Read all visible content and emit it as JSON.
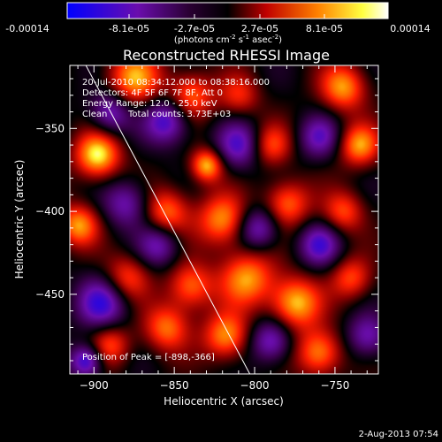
{
  "colorbar": {
    "ticks": [
      "-0.00014",
      "-8.1e-05",
      "-2.7e-05",
      "2.7e-05",
      "8.1e-05",
      "0.00014"
    ],
    "unit_prefix": "(photons cm",
    "unit_sup1": "-2",
    "unit_mid": " s",
    "unit_sup2": "-1",
    "unit_mid2": " asec",
    "unit_sup3": "-2",
    "unit_suffix": ")"
  },
  "chart_data": {
    "type": "heatmap",
    "title": "Reconstructed RHESSI Image",
    "xlabel": "Heliocentric X (arcsec)",
    "ylabel": "Heliocentric Y (arcsec)",
    "xlim": [
      -915,
      -723
    ],
    "ylim": [
      -498,
      -312
    ],
    "x_ticks": [
      -900,
      -850,
      -800,
      -750
    ],
    "y_ticks": [
      -350,
      -400,
      -450
    ],
    "x_tick_labels": [
      "−900",
      "−850",
      "−800",
      "−750"
    ],
    "y_tick_labels": [
      "−350",
      "−400",
      "−450"
    ],
    "colorbar_range": [
      -0.00014,
      0.00014
    ],
    "colormap": [
      "#0000ff",
      "#6a0dad",
      "#2a0033",
      "#000000",
      "#ff0000",
      "#ff8000",
      "#ffff00",
      "#ffffff"
    ],
    "limb_line": [
      [
        -905,
        -312
      ],
      [
        -803,
        -498
      ]
    ],
    "peak": {
      "x": -898,
      "y": -366,
      "value": 0.00014
    },
    "blobs": [
      {
        "x": -898,
        "y": -366,
        "v": 1.0,
        "s": 10
      },
      {
        "x": -875,
        "y": -320,
        "v": 0.8,
        "s": 12
      },
      {
        "x": -840,
        "y": -330,
        "v": 0.7,
        "s": 10
      },
      {
        "x": -810,
        "y": -330,
        "v": 0.5,
        "s": 9
      },
      {
        "x": -745,
        "y": -325,
        "v": 0.8,
        "s": 10
      },
      {
        "x": -790,
        "y": -360,
        "v": 0.6,
        "s": 9
      },
      {
        "x": -830,
        "y": -372,
        "v": 0.9,
        "s": 7
      },
      {
        "x": -735,
        "y": -360,
        "v": 0.8,
        "s": 9
      },
      {
        "x": -910,
        "y": -408,
        "v": 0.8,
        "s": 9
      },
      {
        "x": -855,
        "y": -400,
        "v": 0.7,
        "s": 10
      },
      {
        "x": -820,
        "y": -405,
        "v": 0.8,
        "s": 11
      },
      {
        "x": -780,
        "y": -395,
        "v": 0.7,
        "s": 10
      },
      {
        "x": -745,
        "y": -400,
        "v": 0.6,
        "s": 9
      },
      {
        "x": -880,
        "y": -440,
        "v": 0.6,
        "s": 10
      },
      {
        "x": -840,
        "y": -445,
        "v": 0.7,
        "s": 10
      },
      {
        "x": -805,
        "y": -440,
        "v": 0.8,
        "s": 12
      },
      {
        "x": -775,
        "y": -455,
        "v": 0.9,
        "s": 11
      },
      {
        "x": -740,
        "y": -440,
        "v": 0.6,
        "s": 9
      },
      {
        "x": -890,
        "y": -480,
        "v": 0.6,
        "s": 9
      },
      {
        "x": -855,
        "y": -470,
        "v": 0.7,
        "s": 10
      },
      {
        "x": -818,
        "y": -475,
        "v": 0.8,
        "s": 10
      },
      {
        "x": -760,
        "y": -485,
        "v": 0.8,
        "s": 10
      },
      {
        "x": -890,
        "y": -340,
        "v": -0.7,
        "s": 9
      },
      {
        "x": -855,
        "y": -345,
        "v": -0.8,
        "s": 10
      },
      {
        "x": -810,
        "y": -360,
        "v": -0.7,
        "s": 10
      },
      {
        "x": -760,
        "y": -355,
        "v": -0.6,
        "s": 9
      },
      {
        "x": -880,
        "y": -395,
        "v": -0.6,
        "s": 10
      },
      {
        "x": -798,
        "y": -410,
        "v": -0.7,
        "s": 9
      },
      {
        "x": -760,
        "y": -420,
        "v": -0.7,
        "s": 9
      },
      {
        "x": -895,
        "y": -455,
        "v": -0.8,
        "s": 11
      },
      {
        "x": -860,
        "y": -420,
        "v": -0.6,
        "s": 9
      },
      {
        "x": -790,
        "y": -478,
        "v": -0.7,
        "s": 9
      },
      {
        "x": -730,
        "y": -475,
        "v": -0.6,
        "s": 9
      },
      {
        "x": -905,
        "y": -490,
        "v": -0.9,
        "s": 7
      }
    ]
  },
  "annotations": {
    "time_range": "20-Jul-2010 08:34:12.000 to 08:38:16.000",
    "detectors": "Detectors: 4F 5F 6F 7F 8F, Att 0",
    "energy": "Energy Range: 12.0 - 25.0 keV",
    "clean": "Clean",
    "total_counts": "Total counts: 3.73E+03",
    "peak_position": "Position of Peak = [-898,-366]"
  },
  "footer": {
    "timestamp": "2-Aug-2013 07:54"
  }
}
